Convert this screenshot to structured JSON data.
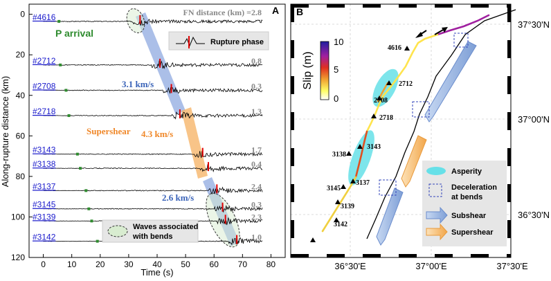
{
  "panel_a": {
    "label": "A",
    "y_axis_label": "Along-rupture distance (km)",
    "x_axis_label": "Time (s)",
    "x_ticks": [
      "0",
      "10",
      "20",
      "30",
      "40",
      "50",
      "60",
      "70",
      "80"
    ],
    "y_ticks": [
      "0",
      "20",
      "40",
      "60",
      "80",
      "100",
      "120"
    ],
    "fn_header": "FN distance (km) =2.8",
    "p_arrival_label": "P arrival",
    "rupture_phase_label": "Rupture phase",
    "speed_subshear_1": "3.1 km/s",
    "speed_supershear_label": "Supershear",
    "speed_supershear_value": "4.3 km/s",
    "speed_subshear_2": "2.6 km/s",
    "bend_waves_label_1": "Waves associated",
    "bend_waves_label_2": "with bends",
    "stations": [
      {
        "id": "#4616",
        "fn": "2.8",
        "dist_km": 3.5,
        "p_s": 5.5
      },
      {
        "id": "#2712",
        "fn": "0.8",
        "dist_km": 25,
        "p_s": 6
      },
      {
        "id": "#2708",
        "fn": "0.3",
        "dist_km": 37.5,
        "p_s": 8
      },
      {
        "id": "#2718",
        "fn": "1.3",
        "dist_km": 50,
        "p_s": 9
      },
      {
        "id": "#3143",
        "fn": "1.7",
        "dist_km": 69,
        "p_s": 12
      },
      {
        "id": "#3138",
        "fn": "0.4",
        "dist_km": 76,
        "p_s": 13
      },
      {
        "id": "#3137",
        "fn": "2.4",
        "dist_km": 87,
        "p_s": 15
      },
      {
        "id": "#3145",
        "fn": "0.3",
        "dist_km": 96,
        "p_s": 16
      },
      {
        "id": "#3139",
        "fn": "2.3",
        "dist_km": 102,
        "p_s": 17
      },
      {
        "id": "#3142",
        "fn": "1.0",
        "dist_km": 112,
        "p_s": 19
      }
    ]
  },
  "panel_b": {
    "label": "B",
    "lat_labels": [
      "37°30'N",
      "37°00'N",
      "36°30'N"
    ],
    "lon_labels": [
      "36°30'E",
      "37°00'E",
      "37°30'E"
    ],
    "colorbar_title": "Slip (m)",
    "colorbar_ticks": [
      "10",
      "5",
      "0"
    ],
    "colormap": [
      "#ffff66",
      "#f0a030",
      "#e03020",
      "#a020a0",
      "#2020a0"
    ],
    "station_labels": [
      "4616",
      "2712",
      "2708",
      "2718",
      "3138",
      "3143",
      "3145",
      "3137",
      "3139",
      "3142"
    ],
    "legend": {
      "asperity": "Asperity",
      "deceleration_1": "Deceleration",
      "deceleration_2": "at bends",
      "subshear": "Subshear",
      "supershear": "Supershear"
    },
    "colors": {
      "asperity": "#66e0e8",
      "subshear": "#9bb9e6",
      "supershear": "#f7c07a",
      "station_label": "#1a1acc",
      "p_arrival": "#2e8b2e"
    }
  }
}
